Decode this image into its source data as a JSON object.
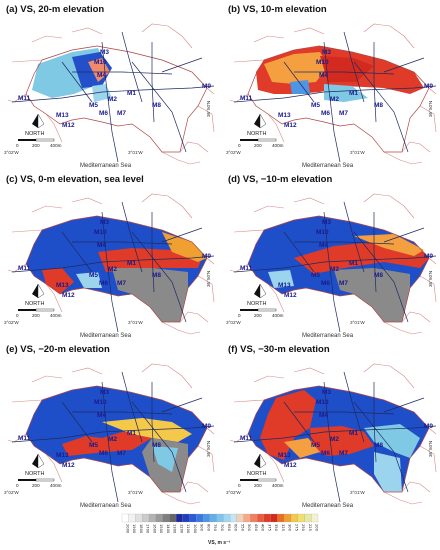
{
  "panels": [
    {
      "title": "(a) VS, 20-m elevation",
      "style": "a"
    },
    {
      "title": "(b) VS, 10-m elevation",
      "style": "b"
    },
    {
      "title": "(c) VS, 0-m elevation, sea level",
      "style": "c"
    },
    {
      "title": "(d) VS, −10-m elevation",
      "style": "d"
    },
    {
      "title": "(e) VS, −20-m elevation",
      "style": "e"
    },
    {
      "title": "(f) VS, −30-m elevation",
      "style": "f"
    }
  ],
  "map_labels": {
    "stations": [
      "M1",
      "M2",
      "M3",
      "M4",
      "M5",
      "M6",
      "M7",
      "M8",
      "M9",
      "M10",
      "M11",
      "M12",
      "M13"
    ],
    "north": "NORTH",
    "sea": "Mediterranean Sea",
    "lon_left": "3°02′W",
    "lon_right": "3°01′W",
    "lat_right": "36°50′N",
    "scale": [
      "0",
      "200",
      "400m"
    ]
  },
  "legend": {
    "title": "VS, m s⁻¹",
    "ticks": [
      "2000",
      "1900",
      "1800",
      "1700",
      "1600",
      "1500",
      "1400",
      "1300",
      "1200",
      "1100",
      "1000",
      "900",
      "800",
      "750",
      "700",
      "650",
      "600",
      "550",
      "500",
      "450",
      "400",
      "375",
      "350",
      "325",
      "300",
      "275",
      "250",
      "225",
      "200"
    ],
    "colors": [
      "#ffffff",
      "#f2f2f2",
      "#e0e0e0",
      "#cccccc",
      "#b3b3b3",
      "#9a9a9a",
      "#7f7f7f",
      "#666666",
      "#1b2a9e",
      "#1f3fbf",
      "#2a5ad6",
      "#3a78e0",
      "#4f95e6",
      "#66aeea",
      "#80c4ee",
      "#a0d6f0",
      "#c4e6f2",
      "#f0d0b8",
      "#f5a985",
      "#f28060",
      "#ec5a3e",
      "#e03a28",
      "#d22a1e",
      "#e87020",
      "#f0a030",
      "#f4c848",
      "#f0e070",
      "#e8e8a0",
      "#f5f0d0"
    ]
  }
}
